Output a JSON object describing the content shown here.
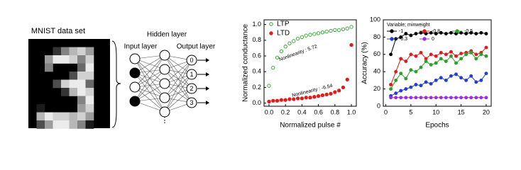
{
  "diagram": {
    "title": "MNIST data set",
    "hidden_label": "Hidden layer",
    "input_label": "Input layer",
    "output_label": "Output layer",
    "outputs": [
      "0",
      "1",
      "2",
      "3"
    ],
    "ellipsis": "⋮"
  },
  "chart_data": [
    {
      "type": "scatter",
      "xlabel": "Normalized pulse #",
      "ylabel": "Normalized conductance",
      "x": [
        0,
        0.05,
        0.1,
        0.15,
        0.2,
        0.25,
        0.3,
        0.35,
        0.4,
        0.45,
        0.5,
        0.55,
        0.6,
        0.65,
        0.7,
        0.75,
        0.8,
        0.85,
        0.9,
        0.95,
        1.0
      ],
      "series": [
        {
          "name": "LTP",
          "color": "#2ca02c",
          "filled": false,
          "values": [
            0.22,
            0.45,
            0.58,
            0.66,
            0.72,
            0.76,
            0.79,
            0.82,
            0.84,
            0.86,
            0.87,
            0.88,
            0.89,
            0.9,
            0.91,
            0.92,
            0.93,
            0.93,
            0.94,
            0.95,
            0.97
          ]
        },
        {
          "name": "LTD",
          "color": "#e31a1c",
          "filled": true,
          "values": [
            0.02,
            0.03,
            0.03,
            0.04,
            0.04,
            0.05,
            0.05,
            0.06,
            0.06,
            0.07,
            0.07,
            0.08,
            0.09,
            0.1,
            0.11,
            0.12,
            0.14,
            0.16,
            0.2,
            0.3,
            0.74
          ]
        }
      ],
      "annotations": [
        {
          "text": "Nonlinearity : 5.72"
        },
        {
          "text": "Nonlinearity : -6.54"
        }
      ],
      "xlim": [
        -0.06,
        1.06
      ],
      "ylim": [
        -0.04,
        1.06
      ],
      "xticks": [
        {
          "value": 0,
          "label": "0.0"
        },
        {
          "value": 0.2,
          "label": "0.2"
        },
        {
          "value": 0.4,
          "label": "0.4"
        },
        {
          "value": 0.6,
          "label": "0.6"
        },
        {
          "value": 0.8,
          "label": "0.8"
        },
        {
          "value": 1,
          "label": "1.0"
        }
      ],
      "yticks": [
        {
          "value": 0,
          "label": "0.0"
        },
        {
          "value": 0.2,
          "label": "0.2"
        },
        {
          "value": 0.4,
          "label": "0.4"
        },
        {
          "value": 0.6,
          "label": "0.6"
        },
        {
          "value": 0.8,
          "label": "0.8"
        },
        {
          "value": 1,
          "label": "1.0"
        }
      ],
      "legend": "upper-left"
    },
    {
      "type": "line",
      "xlabel": "Epochs",
      "ylabel": "Accuracy (%)",
      "legend_title": "Variable; minweight",
      "x": [
        1,
        2,
        3,
        4,
        5,
        6,
        7,
        8,
        9,
        10,
        11,
        12,
        13,
        14,
        15,
        16,
        17,
        18,
        19,
        20
      ],
      "series": [
        {
          "name": "-1",
          "color": "#000000",
          "values": [
            60,
            78,
            80,
            84,
            82,
            84,
            85,
            84,
            85,
            84,
            85,
            84,
            85,
            84,
            85,
            84,
            85,
            84,
            85,
            84
          ]
        },
        {
          "name": "-0.8",
          "color": "#e31a1c",
          "values": [
            25,
            40,
            55,
            52,
            60,
            58,
            62,
            55,
            60,
            58,
            62,
            60,
            63,
            58,
            61,
            62,
            64,
            60,
            62,
            68
          ]
        },
        {
          "name": "-0.5",
          "color": "#2ca02c",
          "values": [
            20,
            30,
            38,
            32,
            42,
            40,
            45,
            52,
            48,
            50,
            55,
            52,
            58,
            50,
            55,
            60,
            62,
            55,
            60,
            58
          ]
        },
        {
          "name": "-0.3",
          "color": "#1f3fd6",
          "values": [
            12,
            15,
            18,
            20,
            22,
            25,
            24,
            28,
            26,
            30,
            33,
            30,
            35,
            37,
            33,
            30,
            35,
            28,
            30,
            38
          ]
        },
        {
          "name": "0",
          "color": "#9b30d9",
          "values": [
            10,
            10,
            10,
            10,
            10,
            10,
            10,
            10,
            10,
            10,
            10,
            10,
            10,
            10,
            10,
            10,
            10,
            10,
            10,
            10
          ]
        }
      ],
      "xlim": [
        -0.5,
        21
      ],
      "ylim": [
        0,
        100
      ],
      "xticks": [
        0,
        5,
        10,
        15,
        20
      ],
      "yticks": [
        0,
        20,
        40,
        60,
        80,
        100
      ],
      "legend": "upper-center"
    }
  ]
}
